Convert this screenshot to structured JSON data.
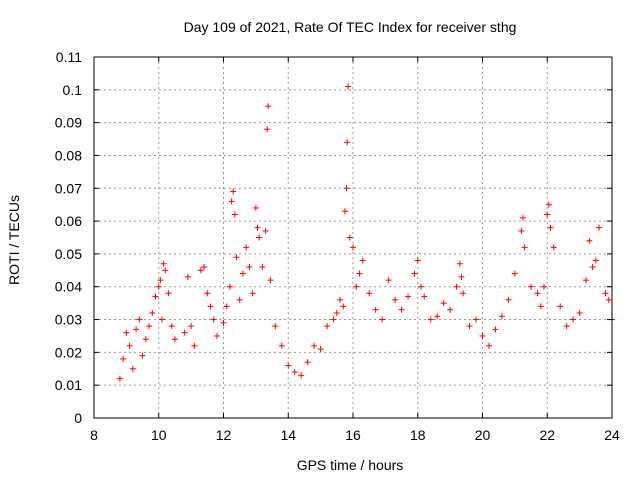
{
  "chart_data": {
    "type": "scatter",
    "title": "Day 109 of 2021, Rate Of TEC Index for receiver sthg",
    "xlabel": "GPS time / hours",
    "ylabel": "ROTI / TECUs",
    "xlim": [
      8,
      24
    ],
    "ylim": [
      0,
      0.11
    ],
    "xticks": [
      8,
      10,
      12,
      14,
      16,
      18,
      20,
      22,
      24
    ],
    "yticks": [
      0,
      0.01,
      0.02,
      0.03,
      0.04,
      0.05,
      0.06,
      0.07,
      0.08,
      0.09,
      0.1,
      0.11
    ],
    "xtick_labels": [
      "8",
      "10",
      "12",
      "14",
      "16",
      "18",
      "20",
      "22",
      "24"
    ],
    "ytick_labels": [
      "0",
      "0.01",
      "0.02",
      "0.03",
      "0.04",
      "0.05",
      "0.06",
      "0.07",
      "0.08",
      "0.09",
      "0.1",
      "0.11"
    ],
    "grid": true,
    "marker": "+",
    "color": "#ff0000",
    "series": [
      {
        "name": "ROTI",
        "points": [
          [
            8.8,
            0.012
          ],
          [
            8.9,
            0.018
          ],
          [
            9.0,
            0.026
          ],
          [
            9.1,
            0.022
          ],
          [
            9.2,
            0.015
          ],
          [
            9.3,
            0.027
          ],
          [
            9.4,
            0.03
          ],
          [
            9.5,
            0.019
          ],
          [
            9.6,
            0.024
          ],
          [
            9.7,
            0.028
          ],
          [
            9.8,
            0.032
          ],
          [
            9.9,
            0.037
          ],
          [
            10.0,
            0.04
          ],
          [
            10.05,
            0.042
          ],
          [
            10.1,
            0.03
          ],
          [
            10.15,
            0.047
          ],
          [
            10.2,
            0.045
          ],
          [
            10.3,
            0.038
          ],
          [
            10.4,
            0.028
          ],
          [
            10.5,
            0.024
          ],
          [
            10.8,
            0.026
          ],
          [
            10.9,
            0.043
          ],
          [
            11.0,
            0.028
          ],
          [
            11.1,
            0.022
          ],
          [
            11.3,
            0.045
          ],
          [
            11.4,
            0.046
          ],
          [
            11.5,
            0.038
          ],
          [
            11.6,
            0.034
          ],
          [
            11.7,
            0.03
          ],
          [
            11.8,
            0.025
          ],
          [
            12.0,
            0.029
          ],
          [
            12.1,
            0.034
          ],
          [
            12.2,
            0.04
          ],
          [
            12.25,
            0.066
          ],
          [
            12.3,
            0.069
          ],
          [
            12.35,
            0.062
          ],
          [
            12.4,
            0.049
          ],
          [
            12.5,
            0.036
          ],
          [
            12.6,
            0.044
          ],
          [
            12.7,
            0.052
          ],
          [
            12.8,
            0.046
          ],
          [
            12.9,
            0.038
          ],
          [
            13.0,
            0.064
          ],
          [
            13.05,
            0.058
          ],
          [
            13.1,
            0.055
          ],
          [
            13.2,
            0.046
          ],
          [
            13.3,
            0.057
          ],
          [
            13.35,
            0.088
          ],
          [
            13.38,
            0.095
          ],
          [
            13.45,
            0.042
          ],
          [
            13.6,
            0.028
          ],
          [
            13.8,
            0.022
          ],
          [
            14.0,
            0.016
          ],
          [
            14.2,
            0.014
          ],
          [
            14.4,
            0.013
          ],
          [
            14.6,
            0.017
          ],
          [
            14.8,
            0.022
          ],
          [
            15.0,
            0.021
          ],
          [
            15.2,
            0.028
          ],
          [
            15.4,
            0.03
          ],
          [
            15.5,
            0.032
          ],
          [
            15.6,
            0.036
          ],
          [
            15.7,
            0.034
          ],
          [
            15.75,
            0.063
          ],
          [
            15.8,
            0.07
          ],
          [
            15.82,
            0.084
          ],
          [
            15.85,
            0.101
          ],
          [
            15.9,
            0.055
          ],
          [
            16.0,
            0.052
          ],
          [
            16.1,
            0.04
          ],
          [
            16.2,
            0.044
          ],
          [
            16.3,
            0.048
          ],
          [
            16.5,
            0.038
          ],
          [
            16.7,
            0.033
          ],
          [
            16.9,
            0.03
          ],
          [
            17.1,
            0.042
          ],
          [
            17.3,
            0.036
          ],
          [
            17.5,
            0.033
          ],
          [
            17.7,
            0.037
          ],
          [
            17.9,
            0.044
          ],
          [
            18.0,
            0.048
          ],
          [
            18.1,
            0.04
          ],
          [
            18.2,
            0.037
          ],
          [
            18.4,
            0.03
          ],
          [
            18.6,
            0.031
          ],
          [
            18.8,
            0.035
          ],
          [
            19.0,
            0.033
          ],
          [
            19.2,
            0.04
          ],
          [
            19.3,
            0.047
          ],
          [
            19.35,
            0.043
          ],
          [
            19.4,
            0.038
          ],
          [
            19.6,
            0.028
          ],
          [
            19.8,
            0.03
          ],
          [
            20.0,
            0.025
          ],
          [
            20.2,
            0.022
          ],
          [
            20.4,
            0.027
          ],
          [
            20.6,
            0.031
          ],
          [
            20.8,
            0.036
          ],
          [
            21.0,
            0.044
          ],
          [
            21.2,
            0.057
          ],
          [
            21.25,
            0.061
          ],
          [
            21.3,
            0.052
          ],
          [
            21.5,
            0.04
          ],
          [
            21.7,
            0.038
          ],
          [
            21.8,
            0.034
          ],
          [
            21.9,
            0.04
          ],
          [
            22.0,
            0.062
          ],
          [
            22.05,
            0.065
          ],
          [
            22.1,
            0.058
          ],
          [
            22.2,
            0.052
          ],
          [
            22.4,
            0.034
          ],
          [
            22.6,
            0.028
          ],
          [
            22.8,
            0.03
          ],
          [
            23.0,
            0.032
          ],
          [
            23.2,
            0.042
          ],
          [
            23.3,
            0.054
          ],
          [
            23.4,
            0.046
          ],
          [
            23.5,
            0.048
          ],
          [
            23.6,
            0.058
          ],
          [
            23.8,
            0.038
          ],
          [
            23.9,
            0.036
          ],
          [
            24.0,
            0.03
          ]
        ]
      }
    ]
  }
}
